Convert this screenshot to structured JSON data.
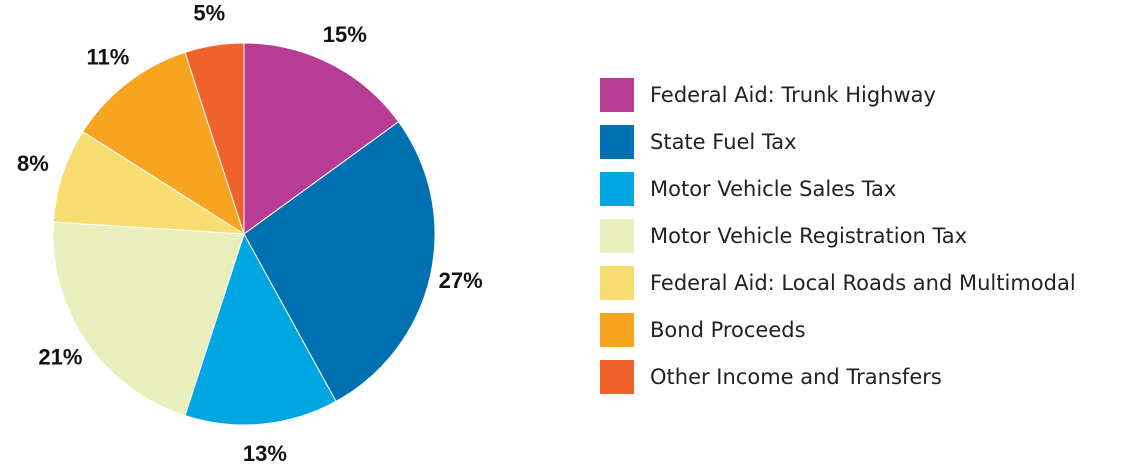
{
  "chart_data": {
    "type": "pie",
    "categories": [
      "Federal Aid: Trunk Highway",
      "State Fuel Tax",
      "Motor Vehicle Sales Tax",
      "Motor Vehicle Registration Tax",
      "Federal Aid: Local Roads and Multimodal",
      "Bond Proceeds",
      "Other Income and Transfers"
    ],
    "values": [
      15,
      27,
      13,
      21,
      8,
      11,
      5
    ],
    "value_labels": [
      "15%",
      "27%",
      "13%",
      "21%",
      "8%",
      "11%",
      "5%"
    ],
    "colors": [
      "#b83b96",
      "#0071b0",
      "#00a6e2",
      "#e8efbc",
      "#f7dc6f",
      "#f7a520",
      "#f0622b"
    ]
  }
}
